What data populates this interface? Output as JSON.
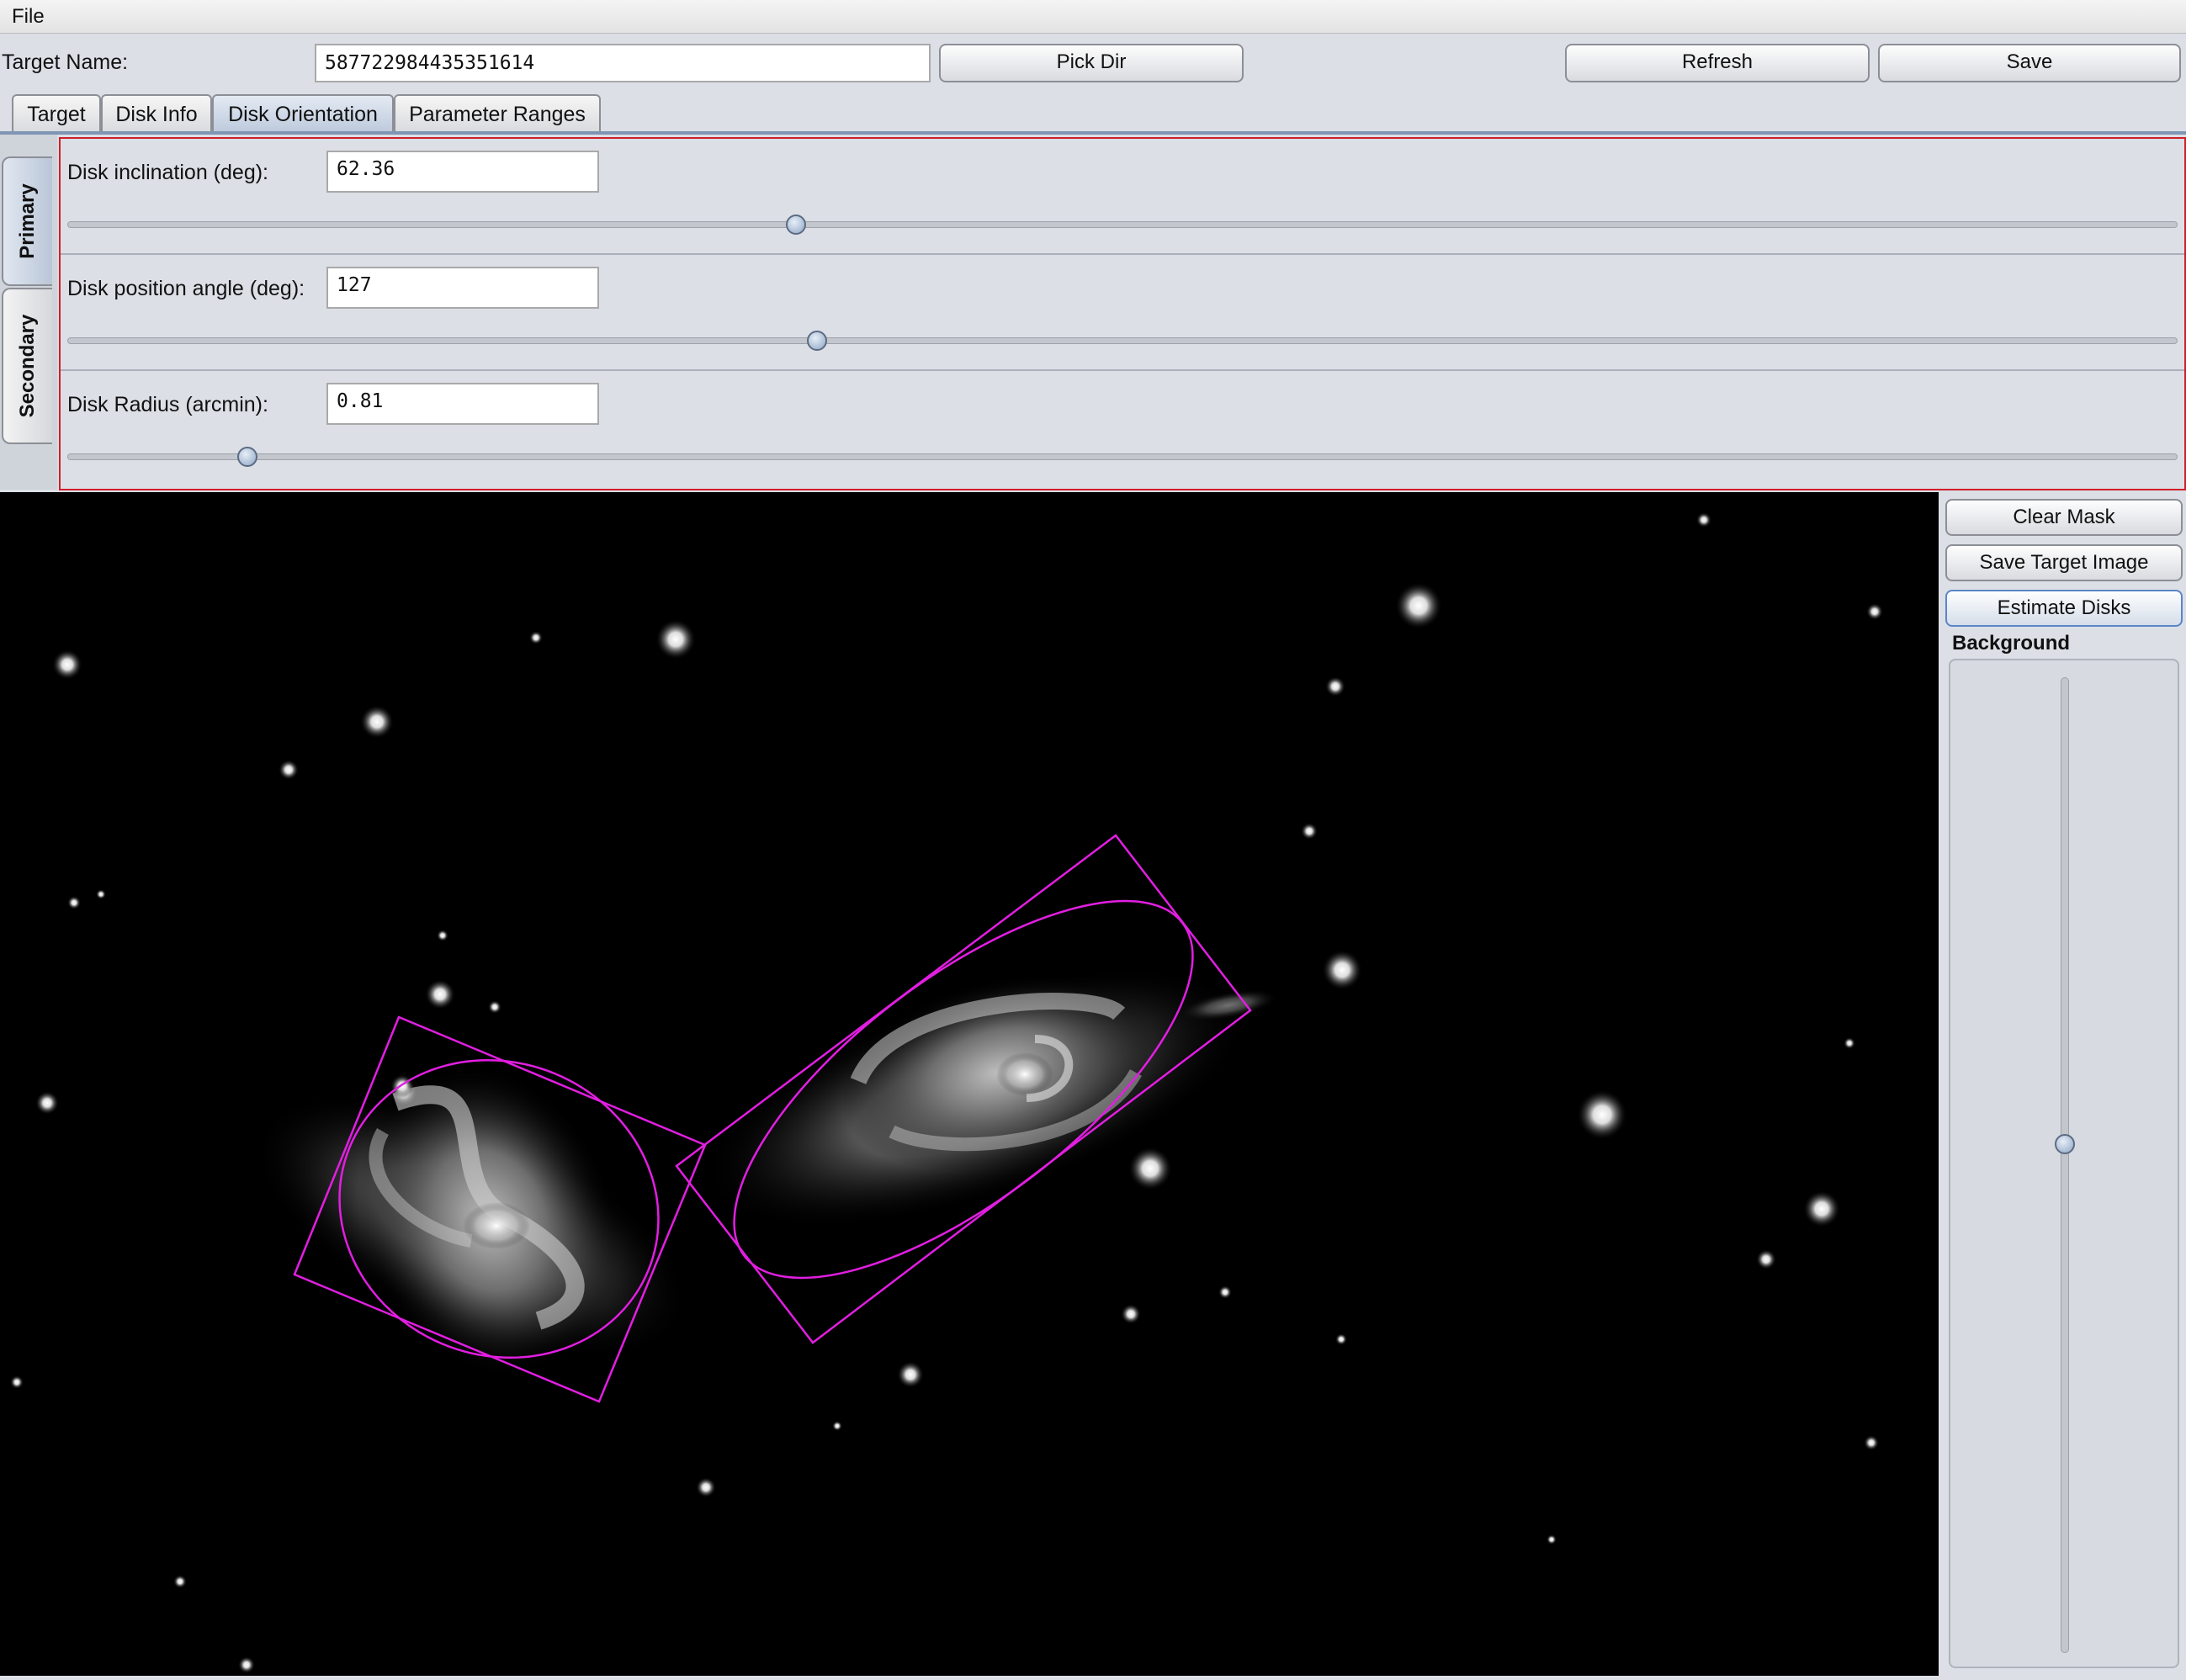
{
  "menu": {
    "file": "File"
  },
  "header": {
    "target_label": "Target Name:",
    "target_value": "587722984435351614",
    "pick_dir": "Pick Dir",
    "refresh": "Refresh",
    "save": "Save"
  },
  "tabs": [
    "Target",
    "Disk Info",
    "Disk Orientation",
    "Parameter Ranges"
  ],
  "side_tabs": [
    "Primary",
    "Secondary"
  ],
  "orientation": {
    "inclination_label": "Disk inclination (deg):",
    "inclination_value": "62.36",
    "position_angle_label": "Disk position angle (deg):",
    "position_angle_value": "127",
    "radius_label": "Disk Radius (arcmin):",
    "radius_value": "0.81"
  },
  "sliders": {
    "inclination_fraction": 0.346,
    "position_angle_fraction": 0.356,
    "radius_fraction": 0.086,
    "background_fraction": 0.52
  },
  "right_panel": {
    "clear_mask": "Clear Mask",
    "save_target_image": "Save Target Image",
    "estimate_disks": "Estimate Disks",
    "background_label": "Background"
  },
  "colors": {
    "overlay": "#e21ee2",
    "panel_border": "#d11f2a"
  }
}
